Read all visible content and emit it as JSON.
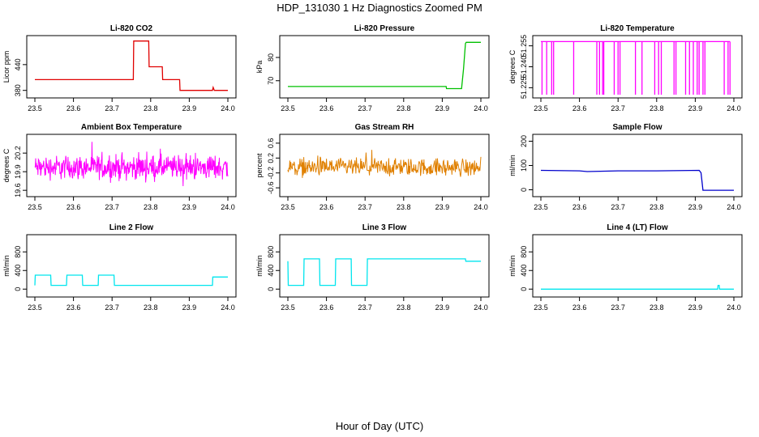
{
  "figure": {
    "title": "HDP_131030  1 Hz Diagnostics Zoomed PM",
    "xlabel": "Hour of Day (UTC)"
  },
  "chart_data": [
    {
      "type": "line",
      "title": "Li-820 CO2",
      "ylabel": "Licor ppm",
      "color": "#e00000",
      "xlim": [
        23.5,
        24.0
      ],
      "ylim": [
        370,
        500
      ],
      "xticks": [
        "23.5",
        "23.6",
        "23.7",
        "23.8",
        "23.9",
        "24.0"
      ],
      "yticks": [
        "380",
        "440"
      ],
      "series": [
        {
          "x": [
            23.5,
            23.755,
            23.756,
            23.795,
            23.796,
            23.83,
            23.831,
            23.875,
            23.876,
            23.96,
            23.962,
            23.965,
            24.0
          ],
          "y": [
            405,
            405,
            495,
            495,
            435,
            435,
            405,
            405,
            380,
            380,
            387,
            380,
            380
          ]
        }
      ]
    },
    {
      "type": "line",
      "title": "Li-820 Pressure",
      "ylabel": "kPa",
      "color": "#00c000",
      "xlim": [
        23.5,
        24.0
      ],
      "ylim": [
        64,
        88
      ],
      "xticks": [
        "23.5",
        "23.6",
        "23.7",
        "23.8",
        "23.9",
        "24.0"
      ],
      "yticks": [
        "70",
        "80"
      ],
      "series": [
        {
          "x": [
            23.5,
            23.91,
            23.911,
            23.95,
            23.955,
            23.96,
            23.962,
            24.0
          ],
          "y": [
            67.5,
            67.5,
            66.6,
            66.6,
            75,
            86,
            86.5,
            86.5
          ]
        }
      ]
    },
    {
      "type": "line",
      "title": "Li-820 Temperature",
      "ylabel": "degrees C",
      "color": "#ff00ff",
      "xlim": [
        23.5,
        24.0
      ],
      "ylim": [
        51.22,
        51.26
      ],
      "xticks": [
        "23.5",
        "23.6",
        "23.7",
        "23.8",
        "23.9",
        "24.0"
      ],
      "yticks": [
        "51.225",
        "51.240",
        "51.255"
      ],
      "series": [
        {
          "x": [
            23.5,
            23.51,
            23.52,
            23.53,
            23.54,
            23.58,
            23.64,
            23.65,
            23.66,
            23.69,
            23.7,
            23.74,
            23.76,
            23.79,
            23.8,
            23.81,
            23.84,
            23.87,
            23.88,
            23.9,
            23.91,
            23.92,
            23.97,
            23.99
          ],
          "y": [
            51.258,
            51.258,
            51.258,
            51.258,
            51.258,
            51.258,
            51.258,
            51.258,
            51.258,
            51.258,
            51.258,
            51.258,
            51.258,
            51.258,
            51.258,
            51.258,
            51.258,
            51.258,
            51.258,
            51.258,
            51.258,
            51.258,
            51.258,
            51.258
          ],
          "drops": [
            23.503,
            23.515,
            23.528,
            23.533,
            23.585,
            23.645,
            23.652,
            23.66,
            23.663,
            23.69,
            23.7,
            23.705,
            23.745,
            23.762,
            23.795,
            23.805,
            23.812,
            23.845,
            23.85,
            23.875,
            23.885,
            23.895,
            23.905,
            23.91,
            23.92,
            23.925,
            23.975,
            23.985,
            23.99
          ]
        }
      ]
    },
    {
      "type": "line",
      "title": "Ambient Box Temperature",
      "ylabel": "degrees C",
      "color": "#ff00ff",
      "xlim": [
        23.5,
        24.0
      ],
      "ylim": [
        19.55,
        20.45
      ],
      "xticks": [
        "23.5",
        "23.6",
        "23.7",
        "23.8",
        "23.9",
        "24.0"
      ],
      "yticks": [
        "19.6",
        "19.9",
        "20.2"
      ],
      "noise": {
        "center": 19.97,
        "amplitude": 0.28,
        "density": 500
      }
    },
    {
      "type": "line",
      "title": "Gas Stream RH",
      "ylabel": "percent",
      "color": "#e08000",
      "xlim": [
        23.5,
        24.0
      ],
      "ylim": [
        -0.75,
        0.75
      ],
      "xticks": [
        "23.5",
        "23.6",
        "23.7",
        "23.8",
        "23.9",
        "24.0"
      ],
      "yticks": [
        "-0.6",
        "-0.2",
        "0.2",
        "0.6"
      ],
      "noise": {
        "center": -0.05,
        "amplitude": 0.35,
        "density": 400
      }
    },
    {
      "type": "line",
      "title": "Sample Flow",
      "ylabel": "ml/min",
      "color": "#0000cc",
      "xlim": [
        23.5,
        24.0
      ],
      "ylim": [
        -15,
        215
      ],
      "xticks": [
        "23.5",
        "23.6",
        "23.7",
        "23.8",
        "23.9",
        "24.0"
      ],
      "yticks": [
        "0",
        "100",
        "200"
      ],
      "series": [
        {
          "x": [
            23.5,
            23.6,
            23.62,
            23.7,
            23.8,
            23.91,
            23.915,
            23.92,
            23.95,
            24.0
          ],
          "y": [
            80,
            78,
            75,
            78,
            78,
            80,
            70,
            -2,
            -2,
            -2
          ]
        }
      ]
    },
    {
      "type": "line",
      "title": "Line 2 Flow",
      "ylabel": "ml/min",
      "color": "#00e5ee",
      "xlim": [
        23.5,
        24.0
      ],
      "ylim": [
        -100,
        1100
      ],
      "xticks": [
        "23.5",
        "23.6",
        "23.7",
        "23.8",
        "23.9",
        "24.0"
      ],
      "yticks": [
        "0",
        "400",
        "800"
      ],
      "series": [
        {
          "x": [
            23.5,
            23.501,
            23.541,
            23.542,
            23.582,
            23.583,
            23.623,
            23.624,
            23.664,
            23.665,
            23.705,
            23.706,
            23.75,
            23.96,
            23.961,
            24.0
          ],
          "y": [
            80,
            300,
            300,
            80,
            80,
            300,
            300,
            80,
            80,
            300,
            300,
            80,
            80,
            80,
            260,
            260
          ]
        }
      ]
    },
    {
      "type": "line",
      "title": "Line 3 Flow",
      "ylabel": "ml/min",
      "color": "#00e5ee",
      "xlim": [
        23.5,
        24.0
      ],
      "ylim": [
        -100,
        1100
      ],
      "xticks": [
        "23.5",
        "23.6",
        "23.7",
        "23.8",
        "23.9",
        "24.0"
      ],
      "yticks": [
        "0",
        "400",
        "800"
      ],
      "series": [
        {
          "x": [
            23.5,
            23.501,
            23.541,
            23.542,
            23.582,
            23.583,
            23.623,
            23.624,
            23.664,
            23.665,
            23.705,
            23.706,
            23.96,
            23.961,
            24.0
          ],
          "y": [
            600,
            80,
            80,
            650,
            650,
            80,
            80,
            650,
            650,
            80,
            80,
            650,
            650,
            600,
            600
          ]
        }
      ]
    },
    {
      "type": "line",
      "title": "Line 4 (LT) Flow",
      "ylabel": "ml/min",
      "color": "#00e5ee",
      "xlim": [
        23.5,
        24.0
      ],
      "ylim": [
        -100,
        1100
      ],
      "xticks": [
        "23.5",
        "23.6",
        "23.7",
        "23.8",
        "23.9",
        "24.0"
      ],
      "yticks": [
        "0",
        "400",
        "800"
      ],
      "series": [
        {
          "x": [
            23.5,
            23.958,
            23.959,
            23.962,
            23.963,
            24.0
          ],
          "y": [
            0,
            0,
            80,
            80,
            0,
            0
          ]
        }
      ]
    }
  ]
}
